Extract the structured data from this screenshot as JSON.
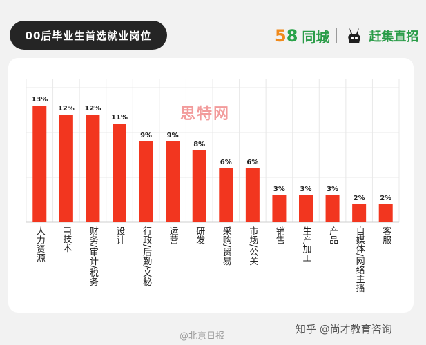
{
  "header": {
    "title": "00后毕业生首选就业岗位",
    "brand_58": "58",
    "brand_tc": "同城",
    "brand_gj": "赶集直招"
  },
  "watermarks": {
    "center": "思特网",
    "bottom_left": "@北京日报",
    "bottom_right": "知乎 @尚才教育咨询"
  },
  "colors": {
    "bar": "#f2361f",
    "background": "#f2f2f2",
    "title_pill": "#252525",
    "grid": "#e8e8e8",
    "brand_green": "#2a9c48",
    "brand_orange": "#f08a1c"
  },
  "chart_data": {
    "type": "bar",
    "title": "00后毕业生首选就业岗位",
    "categories": [
      "人力资源",
      "IT技术",
      "财务/审计/税务",
      "设计",
      "行政/后勤/文秘",
      "运营",
      "研发",
      "采购/贸易",
      "市场/公关",
      "销售",
      "生产加工",
      "产品",
      "自媒体/网络主播",
      "客服"
    ],
    "values": [
      13,
      12,
      12,
      11,
      9,
      9,
      8,
      6,
      6,
      3,
      3,
      3,
      2,
      2
    ],
    "value_labels": [
      "13%",
      "12%",
      "12%",
      "11%",
      "9%",
      "9%",
      "8%",
      "6%",
      "6%",
      "3%",
      "3%",
      "3%",
      "2%",
      "2%"
    ],
    "unit": "%",
    "ylim": [
      0,
      16
    ],
    "grid": true,
    "legend": "none",
    "xlabel": "",
    "ylabel": ""
  }
}
